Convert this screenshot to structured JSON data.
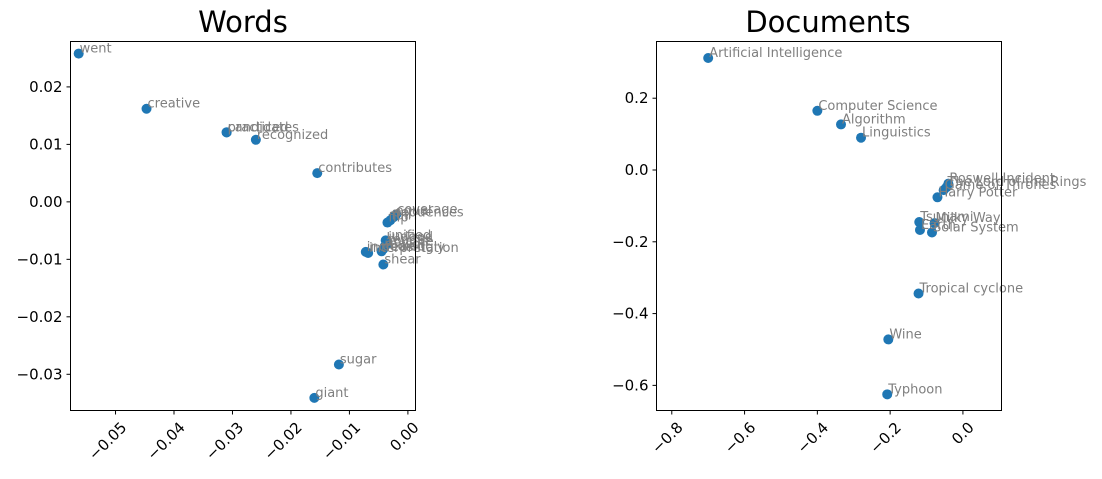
{
  "chart_data": [
    {
      "type": "scatter",
      "title": "Words",
      "xlabel": "",
      "ylabel": "",
      "xlim": [
        -0.0577,
        0.0013
      ],
      "ylim": [
        -0.0363,
        0.0279
      ],
      "xticks": [
        -0.05,
        -0.04,
        -0.03,
        -0.02,
        -0.01,
        0.0
      ],
      "xtick_labels": [
        "−0.05",
        "−0.04",
        "−0.03",
        "−0.02",
        "−0.01",
        "0.00"
      ],
      "yticks": [
        0.02,
        0.01,
        0.0,
        -0.01,
        -0.02,
        -0.03
      ],
      "ytick_labels": [
        "0.02",
        "0.01",
        "0.00",
        "−0.01",
        "−0.02",
        "−0.03"
      ],
      "grid": false,
      "marker_color": "#1f77b4",
      "label_color": "#7f7f7f",
      "points": [
        {
          "label": "went",
          "x": -0.0563,
          "y": 0.0258
        },
        {
          "label": "creative",
          "x": -0.0447,
          "y": 0.0162
        },
        {
          "label": "candidates",
          "x": -0.031,
          "y": 0.0121
        },
        {
          "label": "practiced",
          "x": -0.031,
          "y": 0.0121
        },
        {
          "label": "recognized",
          "x": -0.026,
          "y": 0.0108
        },
        {
          "label": "contributes",
          "x": -0.0155,
          "y": 0.005
        },
        {
          "label": "coverage",
          "x": -0.002,
          "y": -0.0022
        },
        {
          "label": "sequences",
          "x": -0.0025,
          "y": -0.0027
        },
        {
          "label": "equal",
          "x": -0.0023,
          "y": -0.0025
        },
        {
          "label": "full",
          "x": -0.003,
          "y": -0.0032
        },
        {
          "label": "flip",
          "x": -0.0035,
          "y": -0.0036
        },
        {
          "label": "unified",
          "x": -0.0038,
          "y": -0.0067
        },
        {
          "label": "judged",
          "x": -0.0035,
          "y": -0.007
        },
        {
          "label": "render",
          "x": -0.0036,
          "y": -0.0074
        },
        {
          "label": "anyone",
          "x": -0.004,
          "y": -0.0078
        },
        {
          "label": "reason",
          "x": -0.0042,
          "y": -0.0082
        },
        {
          "label": "cooled",
          "x": -0.0045,
          "y": -0.0086
        },
        {
          "label": "increasingly",
          "x": -0.0072,
          "y": -0.0087
        },
        {
          "label": "interpretation",
          "x": -0.0068,
          "y": -0.0089
        },
        {
          "label": "shear",
          "x": -0.0042,
          "y": -0.0109
        },
        {
          "label": "sugar",
          "x": -0.0118,
          "y": -0.0283
        },
        {
          "label": "giant",
          "x": -0.016,
          "y": -0.0341
        }
      ]
    },
    {
      "type": "scatter",
      "title": "Documents",
      "xlabel": "",
      "ylabel": "",
      "xlim": [
        -0.842,
        0.106
      ],
      "ylim": [
        -0.67,
        0.358
      ],
      "xticks": [
        -0.8,
        -0.6,
        -0.4,
        -0.2,
        0.0
      ],
      "xtick_labels": [
        "−0.8",
        "−0.6",
        "−0.4",
        "−0.2",
        "0.0"
      ],
      "yticks": [
        0.2,
        0.0,
        -0.2,
        -0.4,
        -0.6
      ],
      "ytick_labels": [
        "0.2",
        "0.0",
        "−0.2",
        "−0.4",
        "−0.6"
      ],
      "grid": false,
      "marker_color": "#1f77b4",
      "label_color": "#7f7f7f",
      "points": [
        {
          "label": "Artificial Intelligence",
          "x": -0.7,
          "y": 0.312
        },
        {
          "label": "Computer Science",
          "x": -0.4,
          "y": 0.165
        },
        {
          "label": "Algorithm",
          "x": -0.335,
          "y": 0.127
        },
        {
          "label": "Linguistics",
          "x": -0.28,
          "y": 0.09
        },
        {
          "label": "Roswell Incident",
          "x": -0.04,
          "y": -0.038
        },
        {
          "label": "The Lord of the Rings",
          "x": -0.045,
          "y": -0.048
        },
        {
          "label": "Game of Thrones",
          "x": -0.053,
          "y": -0.056
        },
        {
          "label": "Harry Potter",
          "x": -0.07,
          "y": -0.076
        },
        {
          "label": "Tsunami",
          "x": -0.12,
          "y": -0.145
        },
        {
          "label": "Milky Way",
          "x": -0.078,
          "y": -0.148
        },
        {
          "label": "Earth",
          "x": -0.118,
          "y": -0.167
        },
        {
          "label": "Solar System",
          "x": -0.085,
          "y": -0.174
        },
        {
          "label": "Tropical cyclone",
          "x": -0.122,
          "y": -0.344
        },
        {
          "label": "Wine",
          "x": -0.205,
          "y": -0.472
        },
        {
          "label": "Typhoon",
          "x": -0.208,
          "y": -0.625
        }
      ]
    }
  ]
}
